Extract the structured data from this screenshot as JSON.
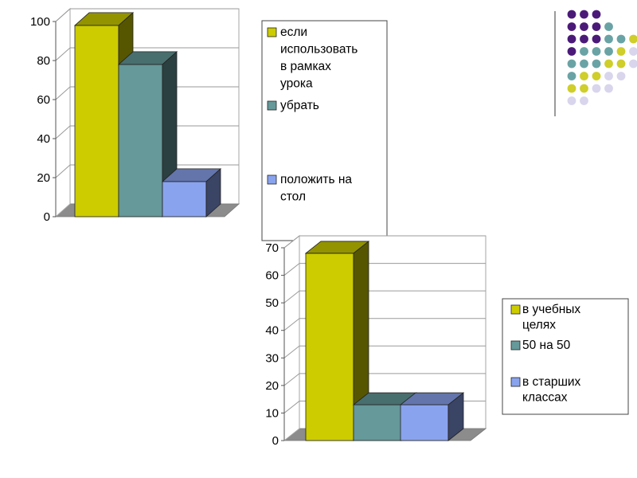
{
  "decoration": {
    "dot_rows": [
      [
        "purple",
        "purple",
        "purple"
      ],
      [
        "purple",
        "purple",
        "purple",
        "teal"
      ],
      [
        "purple",
        "purple",
        "purple",
        "teal",
        "teal",
        "yellow"
      ],
      [
        "purple",
        "teal",
        "teal",
        "teal",
        "yellow",
        "lavender"
      ],
      [
        "teal",
        "teal",
        "teal",
        "yellow",
        "yellow",
        "lavender"
      ],
      [
        "teal",
        "yellow",
        "yellow",
        "lavender",
        "lavender"
      ],
      [
        "yellow",
        "yellow",
        "lavender",
        "lavender"
      ],
      [
        "lavender",
        "lavender"
      ]
    ],
    "colors": {
      "purple": "#4b1a79",
      "teal": "#6aa3a5",
      "yellow": "#cfce2a",
      "lavender": "#d8d5ec",
      "divider": "#9a9a9a"
    }
  },
  "chart_data": [
    {
      "type": "bar",
      "style": "3d",
      "categories": [
        ""
      ],
      "series": [
        {
          "name": "если использовать в рамках урока",
          "values": [
            98
          ],
          "color": "#cccc00"
        },
        {
          "name": "убрать",
          "values": [
            78
          ],
          "color": "#669999"
        },
        {
          "name": "положить на стол",
          "values": [
            18
          ],
          "color": "#8aa3ee"
        }
      ],
      "ylim": [
        0,
        100
      ],
      "yticks": [
        0,
        20,
        40,
        60,
        80,
        100
      ],
      "grid": true,
      "legend": "right",
      "legend_lines": [
        [
          "если",
          "использовать",
          "в рамках",
          "урока"
        ],
        [
          "убрать"
        ],
        [
          "положить на",
          "стол"
        ]
      ]
    },
    {
      "type": "bar",
      "style": "3d",
      "categories": [
        ""
      ],
      "series": [
        {
          "name": "в учебных целях",
          "values": [
            68
          ],
          "color": "#cccc00"
        },
        {
          "name": "50 на 50",
          "values": [
            13
          ],
          "color": "#669999"
        },
        {
          "name": "в старших классах",
          "values": [
            13
          ],
          "color": "#8aa3ee"
        }
      ],
      "ylim": [
        0,
        70
      ],
      "yticks": [
        0,
        10,
        20,
        30,
        40,
        50,
        60,
        70
      ],
      "grid": true,
      "legend": "right",
      "legend_lines": [
        [
          "в учебных",
          "целях"
        ],
        [
          "50 на 50"
        ],
        [
          "в старших",
          "классах"
        ]
      ]
    }
  ]
}
